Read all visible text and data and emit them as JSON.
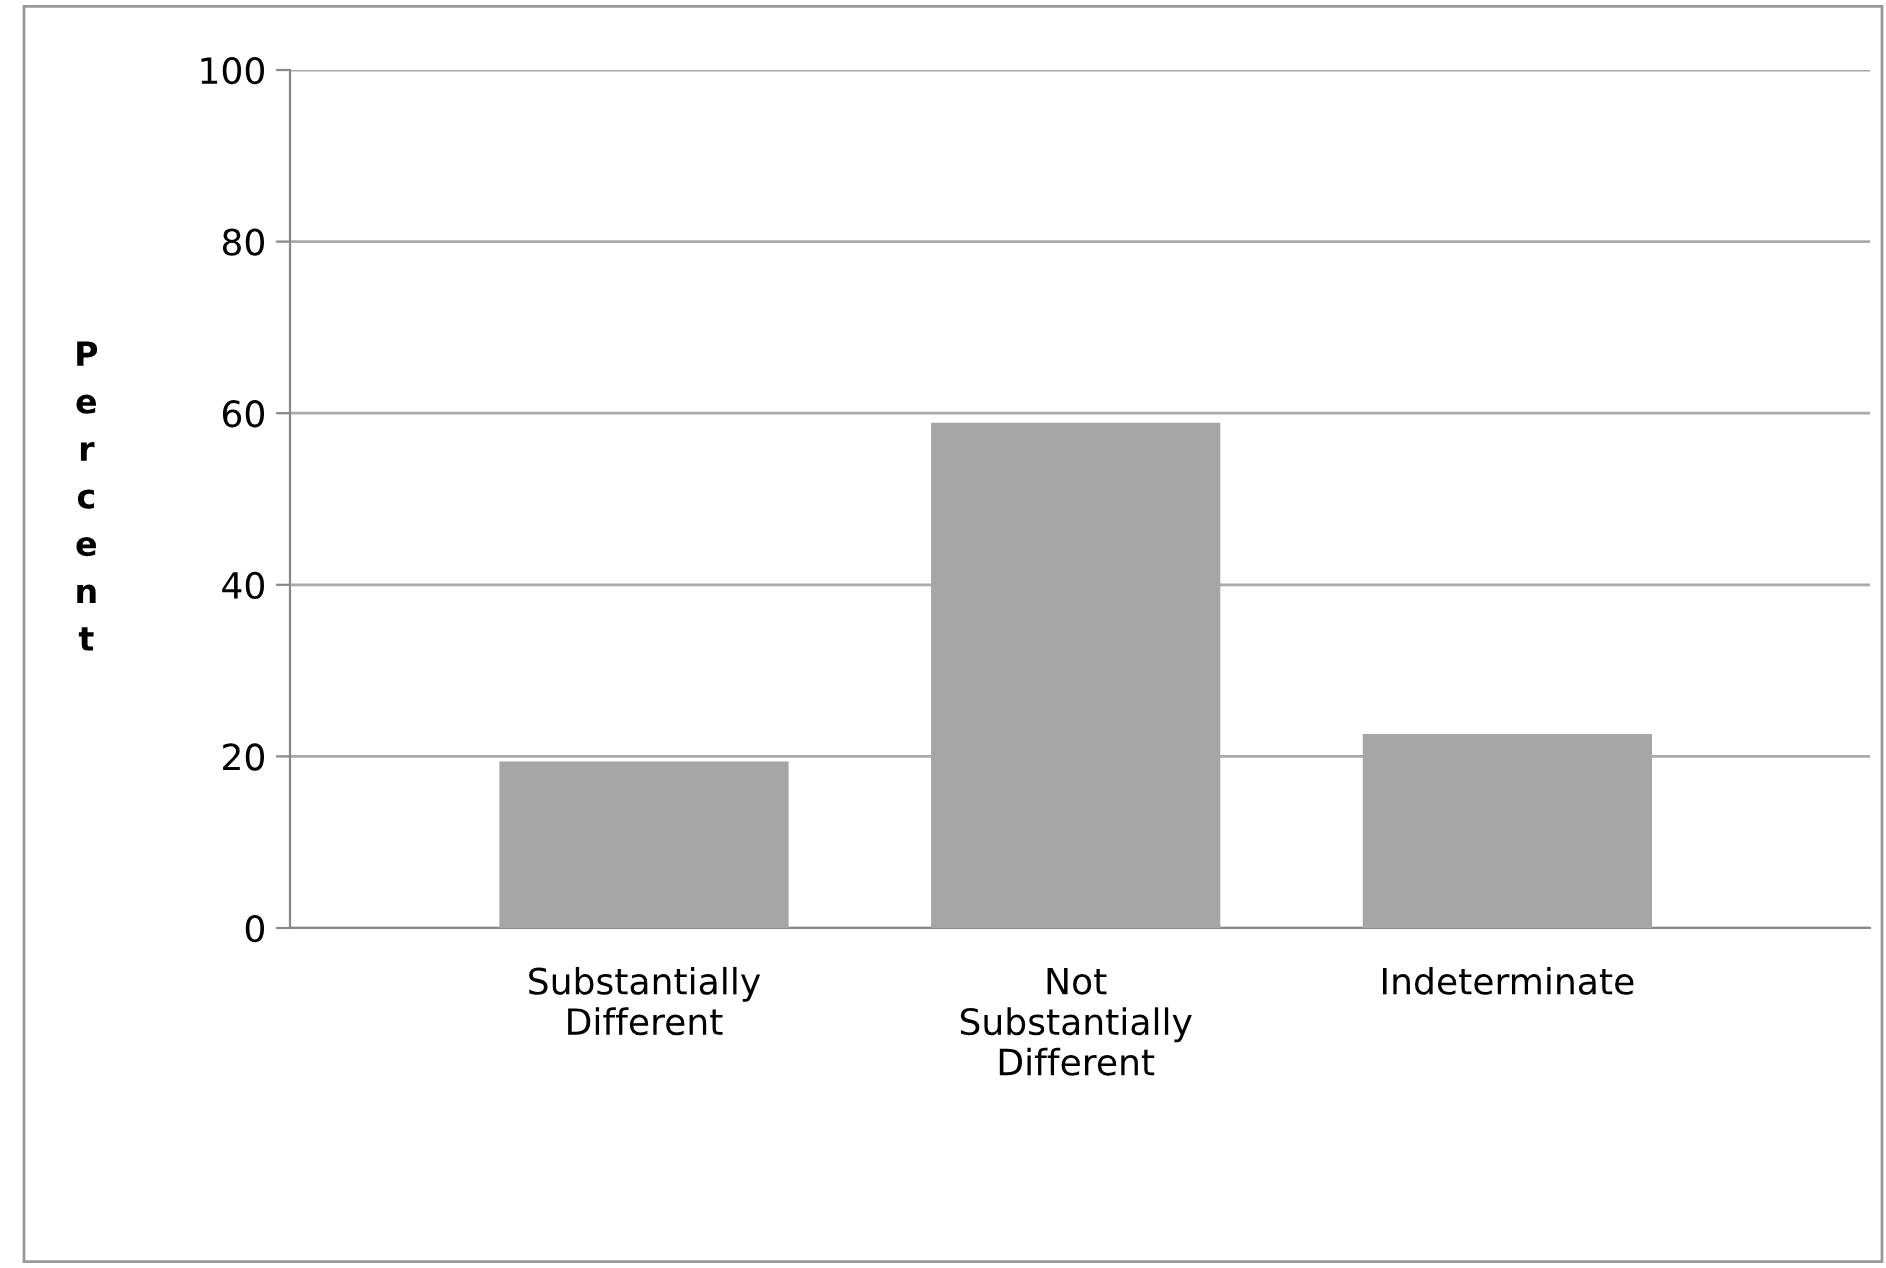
{
  "chart_data": {
    "type": "bar",
    "ylabel": "Percent",
    "categories": [
      "Substantially Different",
      "Not Substantially Different",
      "Indeterminate"
    ],
    "values": [
      19.4,
      58.9,
      22.6
    ],
    "color": "#a6a6a6",
    "ylim": [
      0,
      100
    ],
    "yticks": [
      0,
      20,
      40,
      60,
      80,
      100
    ],
    "grid": "y"
  }
}
